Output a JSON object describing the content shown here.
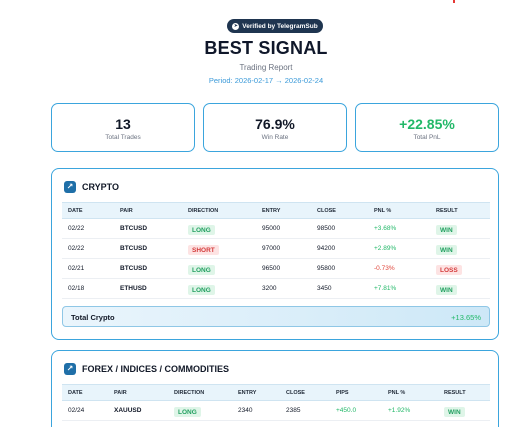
{
  "badge": {
    "label": "Verified by TelegramSub",
    "icon": "send-icon"
  },
  "header": {
    "title": "BEST SIGNAL",
    "subtitle": "Trading Report",
    "period": "Period: 2026-02-17 → 2026-02-24"
  },
  "stats": [
    {
      "value": "13",
      "label": "Total Trades"
    },
    {
      "value": "76.9%",
      "label": "Win Rate"
    },
    {
      "value": "+22.85%",
      "label": "Total PnL",
      "color": "#22b868"
    }
  ],
  "crypto": {
    "title": "CRYPTO",
    "icon": "chart-icon",
    "columns": [
      "DATE",
      "PAIR",
      "DIRECTION",
      "ENTRY",
      "CLOSE",
      "PNL %",
      "RESULT"
    ],
    "rows": [
      {
        "date": "02/22",
        "pair": "BTCUSD",
        "direction": "LONG",
        "entry": "95000",
        "close": "98500",
        "pnl": "+3.68%",
        "result": "WIN"
      },
      {
        "date": "02/22",
        "pair": "BTCUSD",
        "direction": "SHORT",
        "entry": "97000",
        "close": "94200",
        "pnl": "+2.89%",
        "result": "WIN"
      },
      {
        "date": "02/21",
        "pair": "BTCUSD",
        "direction": "LONG",
        "entry": "96500",
        "close": "95800",
        "pnl": "-0.73%",
        "result": "LOSS"
      },
      {
        "date": "02/18",
        "pair": "ETHUSD",
        "direction": "LONG",
        "entry": "3200",
        "close": "3450",
        "pnl": "+7.81%",
        "result": "WIN"
      }
    ],
    "total_label": "Total Crypto",
    "total_value": "+13.65%"
  },
  "forex": {
    "title": "FOREX / INDICES / COMMODITIES",
    "icon": "chart-icon",
    "columns": [
      "DATE",
      "PAIR",
      "DIRECTION",
      "ENTRY",
      "CLOSE",
      "PIPS",
      "PNL %",
      "RESULT"
    ],
    "rows": [
      {
        "date": "02/24",
        "pair": "XAUUSD",
        "direction": "LONG",
        "entry": "2340",
        "close": "2385",
        "pips": "+450.0",
        "pnl": "+1.92%",
        "result": "WIN"
      }
    ]
  },
  "colors": {
    "accent": "#3ba5dd",
    "positive": "#22b868",
    "negative": "#e0453a",
    "badge_bg": "#1f3550"
  }
}
